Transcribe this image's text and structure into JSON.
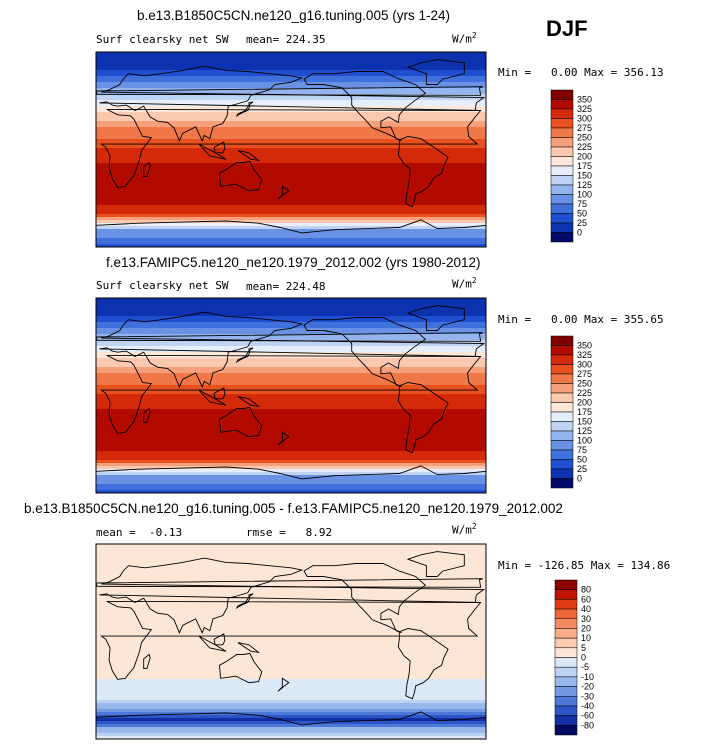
{
  "season": "DJF",
  "units_label": "W/m",
  "units_exp": "2",
  "panels": [
    {
      "title": "b.e13.B1850C5CN.ne120_g16.tuning.005 (yrs 1-24)",
      "left_label": "Surf clearsky net SW",
      "stat1": "mean= 224.35",
      "stat2": "",
      "minmax": "Min =   0.00 Max = 356.13"
    },
    {
      "title": "f.e13.FAMIPC5.ne120_ne120.1979_2012.002 (yrs 1980-2012)",
      "left_label": "Surf clearsky net SW",
      "stat1": "mean= 224.48",
      "stat2": "",
      "minmax": "Min =   0.00 Max = 355.65"
    },
    {
      "title": "b.e13.B1850C5CN.ne120_g16.tuning.005 - f.e13.FAMIPC5.ne120_ne120.1979_2012.002",
      "left_label": "mean =  -0.13",
      "stat1": "rmse =   8.92",
      "stat2": "",
      "minmax": "Min = -126.85 Max = 134.86"
    }
  ],
  "chart_data": [
    {
      "type": "heatmap",
      "title": "b.e13.B1850C5CN.ne120_g16.tuning.005 (yrs 1-24)",
      "variable": "Surf clearsky net SW",
      "units": "W/m2",
      "mean": 224.35,
      "min": 0.0,
      "max": 356.13,
      "colorbar_ticks": [
        350,
        325,
        300,
        275,
        250,
        225,
        200,
        175,
        150,
        125,
        100,
        75,
        50,
        25,
        0
      ],
      "zonal_profile": {
        "lat": [
          90,
          75,
          60,
          45,
          30,
          15,
          0,
          -15,
          -30,
          -45,
          -60,
          -75,
          -90
        ],
        "value": [
          0,
          20,
          80,
          150,
          215,
          265,
          300,
          330,
          345,
          340,
          300,
          95,
          40
        ]
      }
    },
    {
      "type": "heatmap",
      "title": "f.e13.FAMIPC5.ne120_ne120.1979_2012.002 (yrs 1980-2012)",
      "variable": "Surf clearsky net SW",
      "units": "W/m2",
      "mean": 224.48,
      "min": 0.0,
      "max": 355.65,
      "colorbar_ticks": [
        350,
        325,
        300,
        275,
        250,
        225,
        200,
        175,
        150,
        125,
        100,
        75,
        50,
        25,
        0
      ],
      "zonal_profile": {
        "lat": [
          90,
          75,
          60,
          45,
          30,
          15,
          0,
          -15,
          -30,
          -45,
          -60,
          -75,
          -90
        ],
        "value": [
          0,
          20,
          80,
          150,
          215,
          265,
          300,
          330,
          345,
          340,
          300,
          95,
          40
        ]
      }
    },
    {
      "type": "heatmap",
      "title": "b.e13.B1850C5CN.ne120_g16.tuning.005 - f.e13.FAMIPC5.ne120_ne120.1979_2012.002",
      "units": "W/m2",
      "mean": -0.13,
      "rmse": 8.92,
      "min": -126.85,
      "max": 134.86,
      "colorbar_ticks": [
        80,
        60,
        40,
        30,
        20,
        10,
        5,
        0,
        -5,
        -10,
        -20,
        -30,
        -40,
        -60,
        -80
      ],
      "zonal_profile": {
        "lat": [
          90,
          60,
          30,
          0,
          -30,
          -55,
          -65,
          -72,
          -80,
          -90
        ],
        "value": [
          0,
          2,
          1,
          0,
          1,
          -5,
          -30,
          -70,
          -20,
          0
        ]
      }
    }
  ],
  "colorbars": {
    "abs": {
      "ticks": [
        "350",
        "325",
        "300",
        "275",
        "250",
        "225",
        "200",
        "175",
        "150",
        "125",
        "100",
        "75",
        "50",
        "25",
        "0"
      ],
      "colors": [
        "#800000",
        "#b30a00",
        "#d52a0a",
        "#e8501e",
        "#f07848",
        "#f5a07a",
        "#fac8ae",
        "#fde7d9",
        "#e6eefa",
        "#bfd3f5",
        "#94b4ee",
        "#6a92e4",
        "#4070dc",
        "#1f4fd0",
        "#0d32b0",
        "#000a6a"
      ]
    },
    "diff": {
      "ticks": [
        "80",
        "60",
        "40",
        "30",
        "20",
        "10",
        "5",
        "0",
        "-5",
        "-10",
        "-20",
        "-30",
        "-40",
        "-60",
        "-80"
      ],
      "colors": [
        "#8c0000",
        "#c01400",
        "#e03a14",
        "#ef6438",
        "#f48a62",
        "#f8ac8a",
        "#fbcab0",
        "#fde6d6",
        "#dbe8f8",
        "#bcd3f3",
        "#98b8ec",
        "#7299e2",
        "#4e78d8",
        "#2c56c8",
        "#122fa6",
        "#000a60"
      ]
    }
  }
}
